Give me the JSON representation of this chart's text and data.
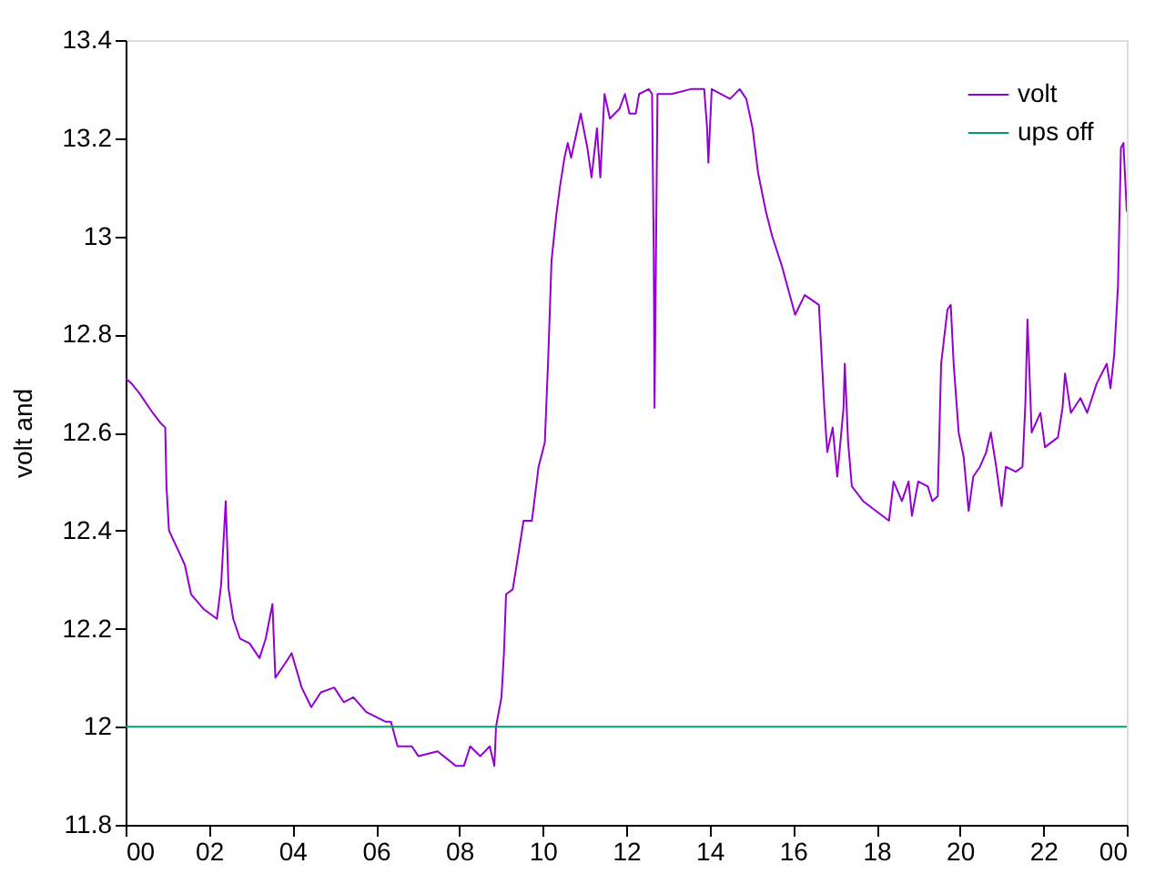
{
  "chart_data": {
    "type": "line",
    "ylabel": "volt and",
    "xlim": [
      0,
      24
    ],
    "xticks": [
      {
        "value": 0,
        "label": "00"
      },
      {
        "value": 2,
        "label": "02"
      },
      {
        "value": 4,
        "label": "04"
      },
      {
        "value": 6,
        "label": "06"
      },
      {
        "value": 8,
        "label": "08"
      },
      {
        "value": 10,
        "label": "10"
      },
      {
        "value": 12,
        "label": "12"
      },
      {
        "value": 14,
        "label": "14"
      },
      {
        "value": 16,
        "label": "16"
      },
      {
        "value": 18,
        "label": "18"
      },
      {
        "value": 20,
        "label": "20"
      },
      {
        "value": 22,
        "label": "22"
      },
      {
        "value": 24,
        "label": "00"
      }
    ],
    "ylim": [
      11.8,
      13.4
    ],
    "yticks": [
      11.8,
      12,
      12.2,
      12.4,
      12.6,
      12.8,
      13,
      13.2,
      13.4
    ],
    "grid": false,
    "legend": "top right",
    "marker": "none",
    "line_style": "solid",
    "series": [
      {
        "name": "volt",
        "color": "#9400d3",
        "x": [
          0.0,
          0.14,
          0.33,
          0.65,
          0.83,
          0.95,
          0.98,
          1.04,
          1.26,
          1.42,
          1.57,
          1.87,
          2.19,
          2.29,
          2.4,
          2.47,
          2.58,
          2.74,
          2.97,
          3.21,
          3.36,
          3.52,
          3.59,
          3.83,
          3.98,
          4.22,
          4.45,
          4.68,
          5.0,
          5.23,
          5.46,
          5.77,
          6.24,
          6.36,
          6.52,
          6.86,
          7.02,
          7.48,
          7.92,
          8.11,
          8.26,
          8.5,
          8.73,
          8.84,
          8.88,
          9.01,
          9.07,
          9.12,
          9.28,
          9.43,
          9.54,
          9.74,
          9.9,
          10.05,
          10.13,
          10.21,
          10.32,
          10.41,
          10.52,
          10.6,
          10.68,
          10.91,
          11.07,
          11.17,
          11.3,
          11.38,
          11.48,
          11.61,
          11.84,
          11.97,
          12.08,
          12.23,
          12.31,
          12.54,
          12.62,
          12.66,
          12.68,
          12.75,
          13.09,
          13.55,
          13.87,
          13.94,
          13.97,
          14.05,
          14.49,
          14.72,
          14.88,
          15.03,
          15.16,
          15.35,
          15.5,
          15.73,
          15.89,
          16.05,
          16.28,
          16.62,
          16.67,
          16.75,
          16.82,
          16.95,
          17.06,
          17.21,
          17.24,
          17.32,
          17.41,
          17.68,
          17.99,
          18.3,
          18.41,
          18.61,
          18.77,
          18.85,
          19.0,
          19.23,
          19.34,
          19.47,
          19.55,
          19.7,
          19.78,
          19.85,
          19.97,
          20.09,
          20.21,
          20.32,
          20.48,
          20.63,
          20.74,
          20.87,
          21.0,
          21.1,
          21.34,
          21.5,
          21.57,
          21.62,
          21.72,
          21.93,
          22.04,
          22.35,
          22.46,
          22.52,
          22.66,
          22.89,
          23.05,
          23.28,
          23.52,
          23.61,
          23.7,
          23.79,
          23.86,
          23.92,
          24.0
        ],
        "values": [
          12.71,
          12.7,
          12.68,
          12.64,
          12.62,
          12.61,
          12.49,
          12.4,
          12.36,
          12.33,
          12.27,
          12.24,
          12.22,
          12.29,
          12.46,
          12.28,
          12.22,
          12.18,
          12.17,
          12.14,
          12.18,
          12.25,
          12.1,
          12.13,
          12.15,
          12.08,
          12.04,
          12.07,
          12.08,
          12.05,
          12.06,
          12.03,
          12.01,
          12.01,
          11.96,
          11.96,
          11.94,
          11.95,
          11.92,
          11.92,
          11.96,
          11.94,
          11.96,
          11.92,
          12.0,
          12.06,
          12.15,
          12.27,
          12.28,
          12.36,
          12.42,
          12.42,
          12.53,
          12.58,
          12.75,
          12.95,
          13.04,
          13.1,
          13.16,
          13.19,
          13.16,
          13.25,
          13.18,
          13.12,
          13.22,
          13.12,
          13.29,
          13.24,
          13.26,
          13.29,
          13.25,
          13.25,
          13.29,
          13.3,
          13.29,
          12.97,
          12.65,
          13.29,
          13.29,
          13.3,
          13.3,
          13.22,
          13.15,
          13.3,
          13.28,
          13.3,
          13.28,
          13.22,
          13.13,
          13.05,
          13.0,
          12.94,
          12.89,
          12.84,
          12.88,
          12.86,
          12.78,
          12.65,
          12.56,
          12.61,
          12.51,
          12.65,
          12.74,
          12.58,
          12.49,
          12.46,
          12.44,
          12.42,
          12.5,
          12.46,
          12.5,
          12.43,
          12.5,
          12.49,
          12.46,
          12.47,
          12.74,
          12.85,
          12.86,
          12.74,
          12.6,
          12.55,
          12.44,
          12.51,
          12.53,
          12.56,
          12.6,
          12.53,
          12.45,
          12.53,
          12.52,
          12.53,
          12.66,
          12.83,
          12.6,
          12.64,
          12.57,
          12.59,
          12.65,
          12.72,
          12.64,
          12.67,
          12.64,
          12.7,
          12.74,
          12.69,
          12.76,
          12.9,
          13.18,
          13.19,
          13.05
        ]
      },
      {
        "name": "ups off",
        "color": "#009e73",
        "x": [
          0,
          24
        ],
        "values": [
          12,
          12
        ]
      }
    ]
  }
}
